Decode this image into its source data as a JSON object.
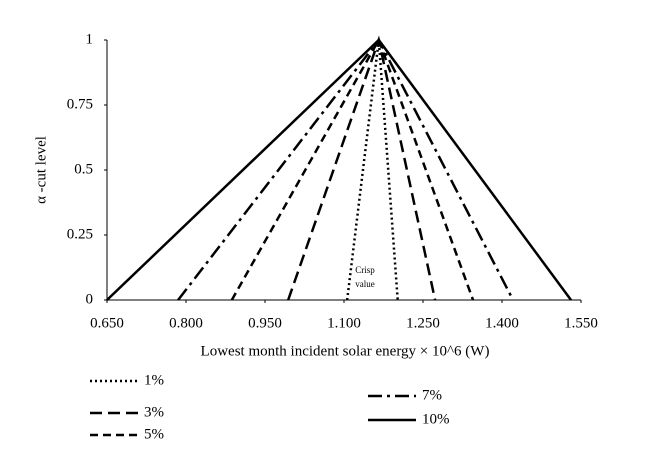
{
  "chart_data": {
    "type": "line",
    "x_label": "Lowest month incident solar energy × 10^6 (W)",
    "y_label": "α -cut level",
    "annotation": [
      "Crisp",
      "value"
    ],
    "xlim": [
      0.65,
      1.55
    ],
    "xticks": [
      {
        "value": 0.65,
        "label": "0.650"
      },
      {
        "value": 0.8,
        "label": "0.800"
      },
      {
        "value": 0.95,
        "label": "0.950"
      },
      {
        "value": 1.1,
        "label": "1.100"
      },
      {
        "value": 1.25,
        "label": "1.250"
      },
      {
        "value": 1.4,
        "label": "1.400"
      },
      {
        "value": 1.55,
        "label": "1.550"
      }
    ],
    "ylim": [
      0,
      1
    ],
    "yticks": [
      0,
      0.25,
      0.5,
      0.75,
      1
    ],
    "grid": false,
    "series": [
      {
        "name": "1%",
        "color": "#000000",
        "dash": "2,3",
        "x": [
          1.106,
          1.166,
          1.202
        ],
        "y": [
          0,
          1,
          0
        ]
      },
      {
        "name": "3%",
        "color": "#000000",
        "dash": "12,6",
        "x": [
          0.994,
          1.166,
          1.273
        ],
        "y": [
          0,
          1,
          0
        ]
      },
      {
        "name": "5%",
        "color": "#000000",
        "dash": "8,5",
        "x": [
          0.887,
          1.166,
          1.345
        ],
        "y": [
          0,
          1,
          0
        ]
      },
      {
        "name": "7%",
        "color": "#000000",
        "dash": "14,5,3,5",
        "x": [
          0.785,
          1.166,
          1.421
        ],
        "y": [
          0,
          1,
          0
        ]
      },
      {
        "name": "10%",
        "color": "#000000",
        "dash": "none",
        "x": [
          0.65,
          1.166,
          1.531
        ],
        "y": [
          0,
          1,
          0
        ]
      }
    ]
  }
}
